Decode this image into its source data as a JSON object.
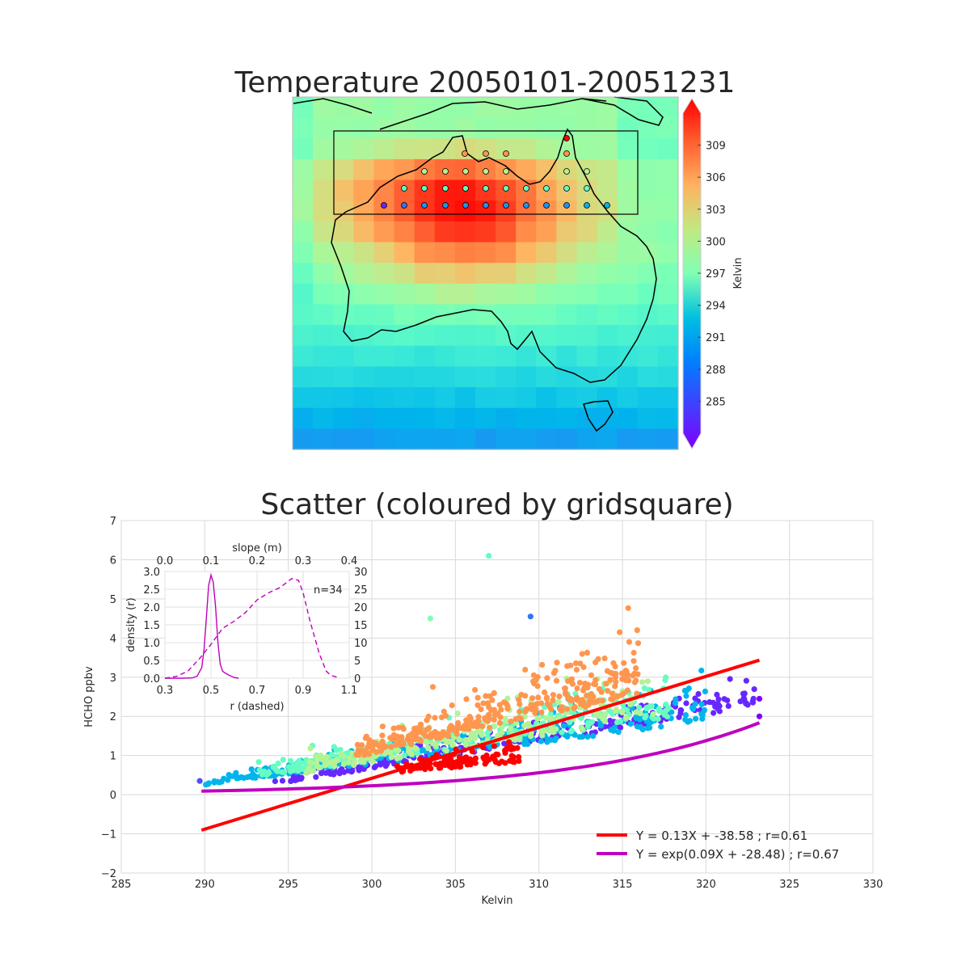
{
  "map_panel": {
    "title": "Temperature 20050101-20051231",
    "colorbar_label": "Kelvin",
    "colorbar_ticks": [
      285,
      288,
      291,
      294,
      297,
      300,
      303,
      306,
      309
    ],
    "color_range": [
      282,
      312
    ]
  },
  "chart_data": [
    {
      "type": "scatter",
      "title": "Scatter (coloured by gridsquare)",
      "xlabel": "Kelvin",
      "ylabel": "HCHO ppbv",
      "xlim": [
        285,
        330
      ],
      "ylim": [
        -2,
        7
      ],
      "xticks": [
        285,
        290,
        295,
        300,
        305,
        310,
        315,
        320,
        325,
        330
      ],
      "yticks": [
        -2,
        -1,
        0,
        1,
        2,
        3,
        4,
        5,
        6,
        7
      ],
      "grid": true,
      "legend_position": "lower-right",
      "fits": [
        {
          "label": "Y = 0.13X + -38.58 ; r=0.61",
          "kind": "linear",
          "slope": 0.13,
          "intercept": -38.58,
          "x_range": [
            289.8,
            323.2
          ],
          "color": "#ff0000"
        },
        {
          "label": "Y = exp(0.09X + -28.48) ; r=0.67",
          "kind": "exponential",
          "slope": 0.09,
          "intercept": -28.48,
          "x_range": [
            289.8,
            323.2
          ],
          "color": "#bf00bf"
        }
      ],
      "point_clusters": [
        {
          "color_value": 0.05,
          "x_range": [
            294,
            323
          ],
          "y_base": [
            0.3,
            2.3
          ],
          "spread": 0.6,
          "count": 260
        },
        {
          "color_value": 0.25,
          "x_range": [
            290,
            320
          ],
          "y_base": [
            0.3,
            1.9
          ],
          "spread": 0.7,
          "count": 280
        },
        {
          "color_value": 0.45,
          "x_range": [
            293,
            318
          ],
          "y_base": [
            0.5,
            2.0
          ],
          "spread": 0.9,
          "count": 260
        },
        {
          "color_value": 0.6,
          "x_range": [
            296,
            317
          ],
          "y_base": [
            0.6,
            2.0
          ],
          "spread": 1.0,
          "count": 200
        },
        {
          "color_value": 0.8,
          "x_range": [
            299,
            316
          ],
          "y_base": [
            1.0,
            2.6
          ],
          "spread": 1.2,
          "count": 320
        },
        {
          "color_value": 1.0,
          "x_range": [
            301,
            309
          ],
          "y_base": [
            0.6,
            0.9
          ],
          "spread": 0.5,
          "count": 110
        }
      ],
      "outliers": [
        {
          "x": 307,
          "y": 6.1,
          "color_value": 0.45
        },
        {
          "x": 303.5,
          "y": 4.5,
          "color_value": 0.5
        },
        {
          "x": 309.5,
          "y": 4.55,
          "color_value": 0.15
        },
        {
          "x": 289.7,
          "y": 0.35,
          "color_value": 0.1
        },
        {
          "x": 323.2,
          "y": 2.0,
          "color_value": 0.0
        },
        {
          "x": 323.2,
          "y": 2.45,
          "color_value": 0.0
        }
      ]
    },
    {
      "type": "line",
      "title": "",
      "note": "n=34",
      "x_top_label": "slope (m)",
      "x_top_ticks": [
        0.0,
        0.1,
        0.2,
        0.3,
        0.4
      ],
      "x_bottom_label": "r (dashed)",
      "x_bottom_ticks": [
        0.3,
        0.5,
        0.7,
        0.9,
        1.1
      ],
      "y_left_label": "density (r)",
      "y_left_ticks": [
        0.0,
        0.5,
        1.0,
        1.5,
        2.0,
        2.5,
        3.0
      ],
      "y_right_ticks": [
        0,
        5,
        10,
        15,
        20,
        25,
        30
      ],
      "series": [
        {
          "axis": "slope_vs_right",
          "style": "solid",
          "x": [
            0.0,
            0.04,
            0.06,
            0.07,
            0.08,
            0.085,
            0.09,
            0.095,
            0.1,
            0.105,
            0.11,
            0.115,
            0.12,
            0.125,
            0.13,
            0.14,
            0.15,
            0.16
          ],
          "y": [
            0,
            0,
            0.1,
            0.6,
            3,
            8,
            17,
            26,
            29,
            27,
            20,
            10,
            4,
            2,
            1.5,
            0.8,
            0.2,
            0
          ]
        },
        {
          "axis": "r_vs_left",
          "style": "dashed",
          "x": [
            0.3,
            0.35,
            0.4,
            0.45,
            0.5,
            0.55,
            0.6,
            0.65,
            0.7,
            0.75,
            0.8,
            0.85,
            0.88,
            0.9,
            0.93,
            0.97,
            1.0,
            1.02,
            1.05
          ],
          "y": [
            0.0,
            0.05,
            0.2,
            0.55,
            0.95,
            1.4,
            1.6,
            1.85,
            2.2,
            2.4,
            2.55,
            2.8,
            2.75,
            2.4,
            1.6,
            0.7,
            0.2,
            0.08,
            0.02
          ]
        }
      ]
    }
  ]
}
